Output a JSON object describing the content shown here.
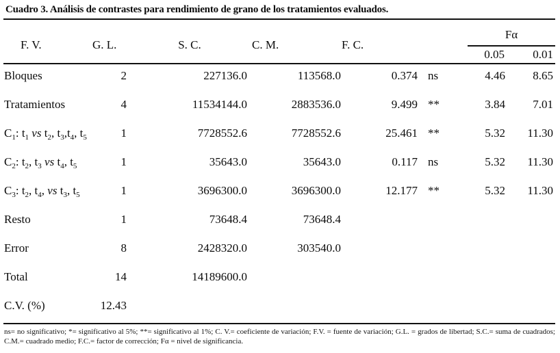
{
  "page": {
    "title": "Cuadro 3. Análisis de contrastes para rendimiento de grano de los tratamientos evaluados."
  },
  "table": {
    "headers": {
      "fv": "F. V.",
      "gl": "G. L.",
      "sc": "S. C.",
      "cm": "C. M.",
      "fc": "F. C.",
      "falpha": "Fα",
      "alpha_05": "0.05",
      "alpha_01": "0.01"
    },
    "columns": [
      "fv",
      "gl",
      "sc",
      "cm",
      "fc",
      "sig",
      "f05",
      "f01"
    ],
    "rows": [
      {
        "fv": "Bloques",
        "gl": "2",
        "sc": "227136.0",
        "cm": "113568.0",
        "fc": "0.374",
        "sig": "ns",
        "f05": "4.46",
        "f01": "8.65"
      },
      {
        "fv": "Tratamientos",
        "gl": "4",
        "sc": "11534144.0",
        "cm": "2883536.0",
        "fc": "9.499",
        "sig": "**",
        "f05": "3.84",
        "f01": "7.01"
      },
      {
        "fv": "C_1_: t_1_ *vs* t_2_, t_3_,t_4_, t_5_",
        "gl": "1",
        "sc": "7728552.6",
        "cm": "7728552.6",
        "fc": "25.461",
        "sig": "**",
        "f05": "5.32",
        "f01": "11.30"
      },
      {
        "fv": "C_2_: t_2_, t_3_ *vs* t_4_, t_5_",
        "gl": "1",
        "sc": "35643.0",
        "cm": "35643.0",
        "fc": "0.117",
        "sig": "ns",
        "f05": "5.32",
        "f01": "11.30"
      },
      {
        "fv": "C_3_: t_2_, t_4_, *vs* t_3_, t_5_",
        "gl": "1",
        "sc": "3696300.0",
        "cm": "3696300.0",
        "fc": "12.177",
        "sig": "**",
        "f05": "5.32",
        "f01": "11.30"
      },
      {
        "fv": "Resto",
        "gl": "1",
        "sc": "73648.4",
        "cm": "73648.4",
        "fc": "",
        "sig": "",
        "f05": "",
        "f01": ""
      },
      {
        "fv": "Error",
        "gl": "8",
        "sc": "2428320.0",
        "cm": "303540.0",
        "fc": "",
        "sig": "",
        "f05": "",
        "f01": ""
      },
      {
        "fv": "Total",
        "gl": "14",
        "sc": "14189600.0",
        "cm": "",
        "fc": "",
        "sig": "",
        "f05": "",
        "f01": ""
      },
      {
        "fv": "C.V. (%)",
        "gl": "12.43",
        "sc": "",
        "cm": "",
        "fc": "",
        "sig": "",
        "f05": "",
        "f01": ""
      }
    ]
  },
  "footnote": "ns= no significativo; *= significativo al 5%; **= significativo al 1%; C. V.= coeficiente de variación; F.V. = fuente de variación; G.L. = grados de libertad; S.C.= suma de cuadrados; C.M.= cuadrado medio; F.C.= factor de corrección; Fα = nivel de significancia."
}
